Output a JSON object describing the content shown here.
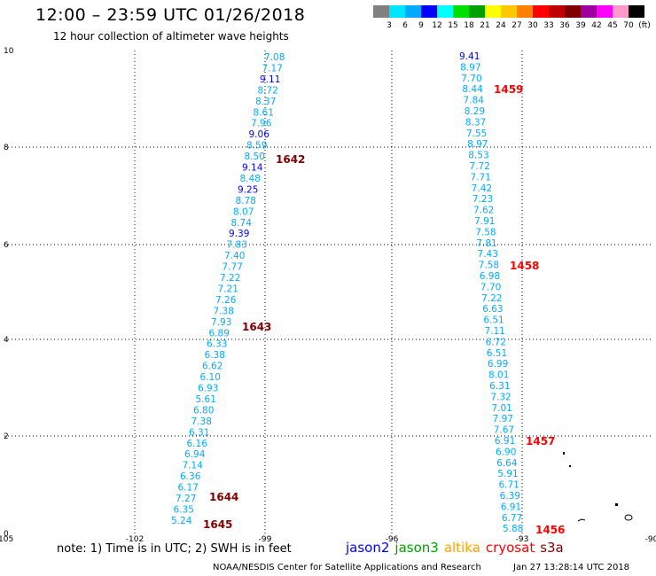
{
  "header": {
    "title": "12:00 – 23:59 UTC 01/26/2018",
    "subtitle": "12 hour collection of altimeter wave heights"
  },
  "colorbar": {
    "colors": [
      "#808080",
      "#00e5ff",
      "#00aaff",
      "#0000ff",
      "#00ffff",
      "#00e000",
      "#00a000",
      "#ffff00",
      "#ffc800",
      "#ff8000",
      "#ff0000",
      "#c00000",
      "#800000",
      "#a000a0",
      "#ff00ff",
      "#ff99cc",
      "#000000"
    ],
    "labels": [
      "3",
      "6",
      "9",
      "12",
      "15",
      "18",
      "21",
      "24",
      "27",
      "30",
      "33",
      "36",
      "39",
      "42",
      "45",
      "70",
      "(ft)"
    ]
  },
  "axes": {
    "x_ticks": [
      "-105",
      "-102",
      "-99",
      "-96",
      "-93",
      "-90"
    ],
    "y_ticks": [
      "0",
      "2",
      "4",
      "6",
      "8",
      "10"
    ],
    "xlim": [
      -105,
      -90
    ],
    "ylim": [
      0,
      10
    ]
  },
  "chart_data": {
    "type": "scatter",
    "tracks": [
      {
        "name": "track-west",
        "points": [
          {
            "v": "7.08",
            "c": "#00aaff"
          },
          {
            "v": "7.17",
            "c": "#00aaff"
          },
          {
            "v": "9.11",
            "c": "#0000ff"
          },
          {
            "v": "8.72",
            "c": "#00aaff"
          },
          {
            "v": "8.37",
            "c": "#00aaff"
          },
          {
            "v": "8.61",
            "c": "#00aaff"
          },
          {
            "v": "7.96",
            "c": "#00aaff"
          },
          {
            "v": "9.06",
            "c": "#0000ff"
          },
          {
            "v": "8.59",
            "c": "#00aaff"
          },
          {
            "v": "8.50",
            "c": "#00aaff"
          },
          {
            "v": "9.14",
            "c": "#0000ff"
          },
          {
            "v": "8.48",
            "c": "#00aaff"
          },
          {
            "v": "9.25",
            "c": "#0000ff"
          },
          {
            "v": "8.78",
            "c": "#00aaff"
          },
          {
            "v": "8.07",
            "c": "#00aaff"
          },
          {
            "v": "8.74",
            "c": "#00aaff"
          },
          {
            "v": "9.39",
            "c": "#0000ff"
          },
          {
            "v": "7.83",
            "c": "#00aaff"
          },
          {
            "v": "7.40",
            "c": "#00aaff"
          },
          {
            "v": "7.77",
            "c": "#00aaff"
          },
          {
            "v": "7.22",
            "c": "#00aaff"
          },
          {
            "v": "7.21",
            "c": "#00aaff"
          },
          {
            "v": "7.26",
            "c": "#00aaff"
          },
          {
            "v": "7.38",
            "c": "#00aaff"
          },
          {
            "v": "7.93",
            "c": "#00aaff"
          },
          {
            "v": "6.89",
            "c": "#00aaff"
          },
          {
            "v": "6.33",
            "c": "#00aaff"
          },
          {
            "v": "6.38",
            "c": "#00aaff"
          },
          {
            "v": "6.62",
            "c": "#00aaff"
          },
          {
            "v": "6.10",
            "c": "#00aaff"
          },
          {
            "v": "6.93",
            "c": "#00aaff"
          },
          {
            "v": "5.61",
            "c": "#00aaff"
          },
          {
            "v": "6.80",
            "c": "#00aaff"
          },
          {
            "v": "7.38",
            "c": "#00aaff"
          },
          {
            "v": "6.31",
            "c": "#00aaff"
          },
          {
            "v": "6.16",
            "c": "#00aaff"
          },
          {
            "v": "6.94",
            "c": "#00aaff"
          },
          {
            "v": "7.14",
            "c": "#00aaff"
          },
          {
            "v": "6.36",
            "c": "#00aaff"
          },
          {
            "v": "6.17",
            "c": "#00aaff"
          },
          {
            "v": "7.27",
            "c": "#00aaff"
          },
          {
            "v": "6.35",
            "c": "#00aaff"
          },
          {
            "v": "5.24",
            "c": "#00aaff"
          }
        ],
        "times": [
          {
            "t": "1642",
            "c": "#800000"
          },
          {
            "t": "1643",
            "c": "#800000"
          },
          {
            "t": "1644",
            "c": "#800000"
          },
          {
            "t": "1645",
            "c": "#800000"
          }
        ]
      },
      {
        "name": "track-east",
        "points": [
          {
            "v": "9.41",
            "c": "#0000ff"
          },
          {
            "v": "8.97",
            "c": "#00aaff"
          },
          {
            "v": "7.70",
            "c": "#00aaff"
          },
          {
            "v": "8.44",
            "c": "#00aaff"
          },
          {
            "v": "7.84",
            "c": "#00aaff"
          },
          {
            "v": "8.29",
            "c": "#00aaff"
          },
          {
            "v": "8.37",
            "c": "#00aaff"
          },
          {
            "v": "7.55",
            "c": "#00aaff"
          },
          {
            "v": "8.97",
            "c": "#00aaff"
          },
          {
            "v": "8.53",
            "c": "#00aaff"
          },
          {
            "v": "7.72",
            "c": "#00aaff"
          },
          {
            "v": "7.71",
            "c": "#00aaff"
          },
          {
            "v": "7.42",
            "c": "#00aaff"
          },
          {
            "v": "7.23",
            "c": "#00aaff"
          },
          {
            "v": "7.62",
            "c": "#00aaff"
          },
          {
            "v": "7.91",
            "c": "#00aaff"
          },
          {
            "v": "7.58",
            "c": "#00aaff"
          },
          {
            "v": "7.81",
            "c": "#00aaff"
          },
          {
            "v": "7.43",
            "c": "#00aaff"
          },
          {
            "v": "7.58",
            "c": "#00aaff"
          },
          {
            "v": "6.98",
            "c": "#00aaff"
          },
          {
            "v": "7.70",
            "c": "#00aaff"
          },
          {
            "v": "7.22",
            "c": "#00aaff"
          },
          {
            "v": "6.63",
            "c": "#00aaff"
          },
          {
            "v": "6.51",
            "c": "#00aaff"
          },
          {
            "v": "7.11",
            "c": "#00aaff"
          },
          {
            "v": "6.72",
            "c": "#00aaff"
          },
          {
            "v": "6.51",
            "c": "#00aaff"
          },
          {
            "v": "6.99",
            "c": "#00aaff"
          },
          {
            "v": "8.01",
            "c": "#00aaff"
          },
          {
            "v": "6.31",
            "c": "#00aaff"
          },
          {
            "v": "7.32",
            "c": "#00aaff"
          },
          {
            "v": "7.01",
            "c": "#00aaff"
          },
          {
            "v": "7.97",
            "c": "#00aaff"
          },
          {
            "v": "7.67",
            "c": "#00aaff"
          },
          {
            "v": "6.91",
            "c": "#00aaff"
          },
          {
            "v": "6.90",
            "c": "#00aaff"
          },
          {
            "v": "6.64",
            "c": "#00aaff"
          },
          {
            "v": "5.91",
            "c": "#00aaff"
          },
          {
            "v": "6.71",
            "c": "#00aaff"
          },
          {
            "v": "6.39",
            "c": "#00aaff"
          },
          {
            "v": "6.91",
            "c": "#00aaff"
          },
          {
            "v": "6.77",
            "c": "#00aaff"
          },
          {
            "v": "5.88",
            "c": "#00aaff"
          }
        ],
        "times": [
          {
            "t": "1459",
            "c": "#ff0000"
          },
          {
            "t": "1458",
            "c": "#ff0000"
          },
          {
            "t": "1457",
            "c": "#ff0000"
          },
          {
            "t": "1456",
            "c": "#ff0000"
          }
        ]
      }
    ]
  },
  "footer": {
    "note": "note:  1) Time is in UTC;  2) SWH is in feet",
    "legend": [
      {
        "label": "jason2",
        "color": "#0000ff"
      },
      {
        "label": "jason3",
        "color": "#00a000"
      },
      {
        "label": "altika",
        "color": "#ffa000"
      },
      {
        "label": "cryosat",
        "color": "#ff0000"
      },
      {
        "label": "s3a",
        "color": "#800000"
      }
    ],
    "credit": "NOAA/NESDIS Center for Satellite Applications and Research",
    "timestamp": "Jan 27 13:28:14 UTC 2018"
  }
}
